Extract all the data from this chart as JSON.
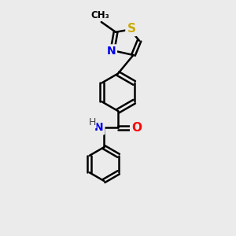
{
  "background_color": "#ebebeb",
  "bond_color": "#000000",
  "atom_colors": {
    "S": "#ccaa00",
    "N": "#0000ee",
    "O": "#ff0000",
    "C": "#000000",
    "H": "#000000"
  },
  "bond_width": 1.8,
  "font_size": 10,
  "figsize": [
    3.0,
    3.0
  ],
  "dpi": 100
}
